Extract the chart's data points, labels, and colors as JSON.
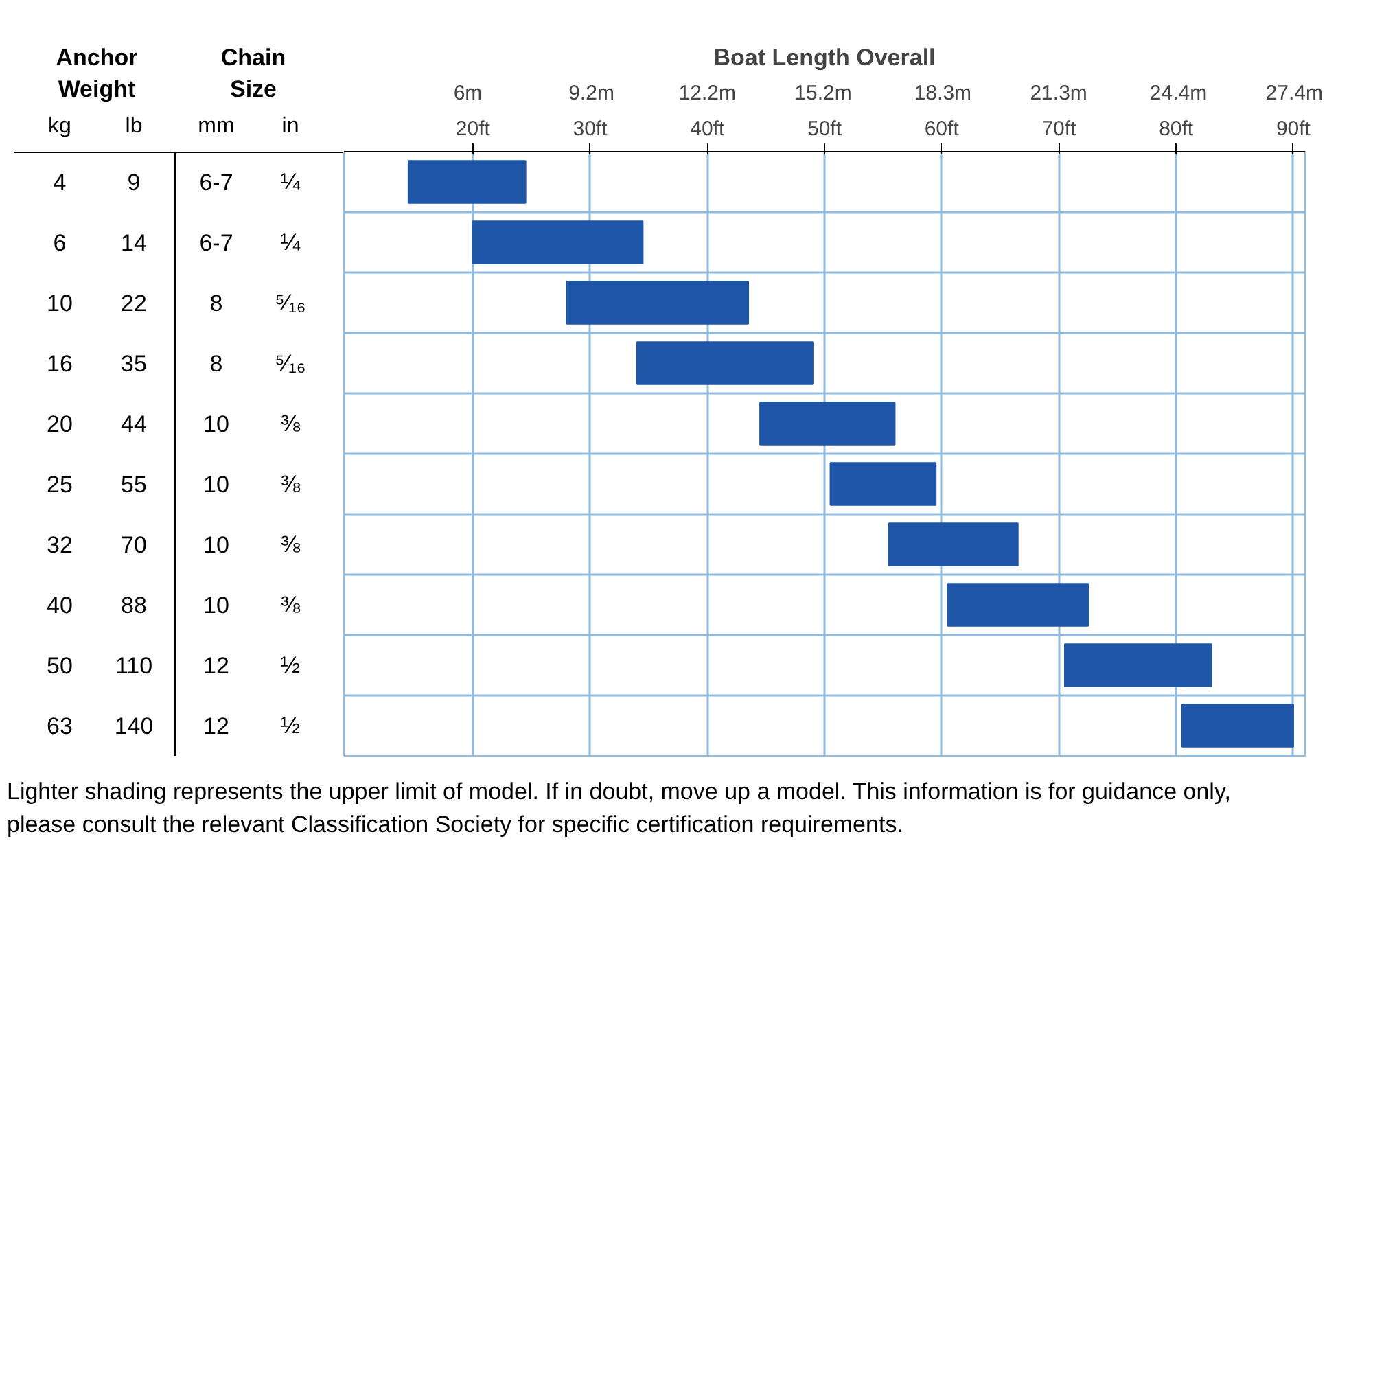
{
  "chart_data": {
    "type": "bar",
    "orientation": "horizontal",
    "xlabel": "Boat Length Overall",
    "ylabel": "Anchor Weight\tChain Size",
    "categories": [
      "4\t9\t6-7\t¼",
      "6\t14\t6-7\t¼",
      "10\t22\t8\t⁵⁄₁₆",
      "16\t35\t8\t⁵⁄₁₆",
      "20\t44\t10\t⅜",
      "25\t55\t10\t⅜",
      "32\t70\t10\t⅜",
      "40\t88\t10\t⅜",
      "50\t110\t12\t½",
      "63\t140\t12\t½"
    ],
    "base": [
      14.5,
      20,
      28,
      34,
      44.5,
      50.5,
      55.5,
      60.5,
      70.5,
      80.5
    ],
    "color": "#1f56a8",
    "values": [
      10,
      14.5,
      15.5,
      15,
      11.5,
      9,
      11,
      12,
      12.5,
      9.5
    ],
    "xlim": [
      9,
      91
    ],
    "xticks": [
      {
        "value": 20,
        "label": "20ft"
      },
      {
        "value": 30,
        "label": "30ft"
      },
      {
        "value": 40,
        "label": "40ft"
      },
      {
        "value": 50,
        "label": "50ft"
      },
      {
        "value": 60,
        "label": "60ft"
      },
      {
        "value": 70,
        "label": "70ft"
      },
      {
        "value": 80,
        "label": "80ft"
      },
      {
        "value": 90,
        "label": "90ft"
      }
    ],
    "x2lim": [
      2.79,
      27.68
    ],
    "x2ticks": [
      {
        "value": 6,
        "label": "6m"
      },
      {
        "value": 9.2,
        "label": "9.2m"
      },
      {
        "value": 12.2,
        "label": "12.2m"
      },
      {
        "value": 15.2,
        "label": "15.2m"
      },
      {
        "value": 18.3,
        "label": "18.3m"
      },
      {
        "value": 21.3,
        "label": "21.3m"
      },
      {
        "value": 24.4,
        "label": "24.4m"
      },
      {
        "value": 27.4,
        "label": "27.4m"
      }
    ],
    "grid": true,
    "annotations": [
      "kg\tlb\tmm\tin",
      "Lighter shading represents the upper limit of model. If in doubt, move up a model. This information is for guidance only, please consult the relevant Classification Society for specific certification requirements."
    ]
  }
}
